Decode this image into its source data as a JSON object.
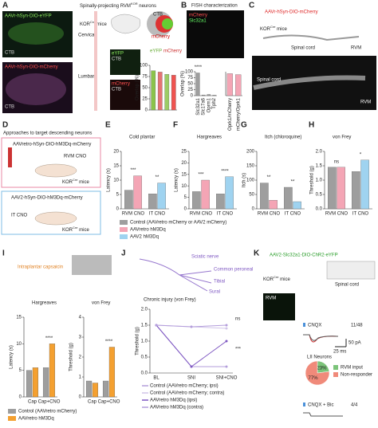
{
  "A": {
    "letter": "A",
    "title": [
      "Spinally-projecting RVM",
      "KOR",
      " neurons"
    ],
    "labels": [
      "AAVr-hSyn-DIO-eYFP",
      "AAVr-hSyn-DIO-mCherry",
      "CTB",
      "CTB",
      "KOR",
      "Cre",
      " mice",
      "Cervical",
      "Lumbar",
      "eYFP",
      "CTB",
      "mCherry",
      "CTB",
      "CTB",
      "eYFP",
      "mCherry"
    ]
  },
  "B": {
    "letter": "B",
    "title": "FISH characterization",
    "labels": [
      "mCherry",
      "Slc32a1"
    ]
  },
  "C": {
    "letter": "C",
    "labels": [
      "AAVr-hSyn-DIO-mCherry",
      "KOR",
      "Cre",
      " mice",
      "Spinal cord",
      "RVM",
      "Spinal cord",
      "RVM"
    ]
  },
  "D": {
    "letter": "D",
    "title": "Approaches to target descending neurons",
    "labels": [
      "AAVretro-hSyn-DIO-hM3Dq-mCherry",
      "RVM CNO",
      "KOR",
      "Cre",
      " mice",
      "AAV2-hSyn-DIO-hM3Dq-mCherry",
      "IT CNO",
      "KOR",
      "Cre",
      " mice"
    ]
  },
  "E": {
    "letter": "E"
  },
  "F": {
    "letter": "F"
  },
  "G": {
    "letter": "G"
  },
  "H": {
    "letter": "H"
  },
  "legend2": [
    {
      "name": "Control (AAVretro mCherry or AAV2 mCherry)",
      "color": "#9e9e9e"
    },
    {
      "name": "AAVretro hM3Dq",
      "color": "#f4a5b5"
    },
    {
      "name": "AAV2 hM3Dq",
      "color": "#9fd3f0"
    }
  ],
  "I": {
    "letter": "I",
    "labels": [
      "Intraplantar capsaicin"
    ],
    "legend": [
      {
        "name": "Control (AAVretro mCherry)",
        "color": "#9e9e9e"
      },
      {
        "name": "AAVretro hM3Dq",
        "color": "#f4a030"
      }
    ]
  },
  "J": {
    "letter": "J",
    "labels": [
      "Sciatic nerve",
      "Common peroneal",
      "Tibial",
      "Sural",
      "Chronic injury (von Frey)"
    ]
  },
  "K": {
    "letter": "K",
    "labels": [
      "AAV2-Slc32a1-DIO-ChR2-eYFP",
      "KOR",
      "Cre",
      " mice",
      "Spinal cord",
      "RVM",
      "CNQX",
      "11/48",
      "50 pA",
      "25 ms",
      "LII Neurons",
      "CNQX + Bic",
      "4/4"
    ],
    "pie": {
      "values": [
        23,
        77
      ],
      "value_labels": [
        "23%",
        "77%"
      ],
      "colors": [
        "#7cc47a",
        "#f08a7a"
      ],
      "names": [
        "RVM input",
        "Non-responder"
      ]
    }
  },
  "charts": {
    "A": {
      "type": "bar",
      "ylabel": "Overlap (%)",
      "categories": [
        null,
        null,
        null,
        null
      ],
      "ylim": [
        0,
        100
      ],
      "yticks": [
        0,
        25,
        50,
        75,
        100
      ],
      "series": [
        {
          "color": "#8bc34a",
          "values": [
            88,
            null,
            null,
            null
          ]
        },
        {
          "color": "#e57373",
          "values": [
            null,
            85,
            null,
            null
          ]
        },
        {
          "color": "#9ccc65",
          "values": [
            null,
            null,
            80,
            null
          ]
        },
        {
          "color": "#ef5350",
          "values": [
            null,
            null,
            null,
            78
          ]
        }
      ]
    },
    "B": {
      "type": "bar",
      "ylabel": "Overlap (%)",
      "categories": [
        "Slc32a1",
        "Slc17a6",
        "Oprm1",
        "Tph2"
      ],
      "ylim": [
        0,
        100
      ],
      "yticks": [
        0,
        25,
        50,
        75,
        100
      ],
      "series": [
        {
          "color": "#9e9e9e",
          "values": [
            95,
            3,
            5,
            2
          ]
        }
      ],
      "annotations": [
        "****"
      ]
    },
    "B2": {
      "type": "bar",
      "categories": [
        "Oprk1/mCherry",
        "mCherry/Oprk1"
      ],
      "ylim": [
        0,
        100
      ],
      "yticks": [],
      "series": [
        {
          "color": "#f4a5b5",
          "values": [
            92,
            88
          ]
        }
      ]
    },
    "E": {
      "type": "bar",
      "title": "Cold plantar",
      "ylabel": "Latency (s)",
      "categories": [
        "RVM CNO",
        "IT CNO"
      ],
      "ylim": [
        0,
        20
      ],
      "yticks": [
        0,
        5,
        10,
        15,
        20
      ],
      "series": [
        {
          "color": "#9e9e9e",
          "values": [
            6.5,
            5.2
          ]
        },
        {
          "color": "#f4a5b5",
          "values": [
            11.5,
            null
          ]
        },
        {
          "color": "#9fd3f0",
          "values": [
            null,
            9
          ]
        }
      ],
      "annotations": [
        "***",
        "**"
      ]
    },
    "F": {
      "type": "bar",
      "title": "Hargreaves",
      "ylabel": "Latency (s)",
      "categories": [
        "RVM CNO",
        "IT CNO"
      ],
      "ylim": [
        0,
        25
      ],
      "yticks": [
        0,
        5,
        10,
        15,
        20,
        25
      ],
      "series": [
        {
          "color": "#9e9e9e",
          "values": [
            7.5,
            6.5
          ]
        },
        {
          "color": "#f4a5b5",
          "values": [
            12.5,
            null
          ]
        },
        {
          "color": "#9fd3f0",
          "values": [
            null,
            14
          ]
        }
      ],
      "annotations": [
        "***",
        "****"
      ]
    },
    "G": {
      "type": "bar",
      "title": "Itch (chloroquine)",
      "ylabel": "Itch (s)",
      "categories": [
        "RVM CNO",
        "IT CNO"
      ],
      "ylim": [
        0,
        200
      ],
      "yticks": [
        0,
        50,
        100,
        150,
        200
      ],
      "series": [
        {
          "color": "#9e9e9e",
          "values": [
            90,
            75
          ]
        },
        {
          "color": "#f4a5b5",
          "values": [
            30,
            null
          ]
        },
        {
          "color": "#9fd3f0",
          "values": [
            null,
            25
          ]
        }
      ],
      "annotations": [
        "**",
        "**"
      ]
    },
    "H": {
      "type": "bar",
      "title": "von Frey",
      "ylabel": "Threshold (g)",
      "categories": [
        "RVM CNO",
        "IT CNO"
      ],
      "ylim": [
        0,
        2
      ],
      "yticks": [
        {
          "value": 0,
          "label": "0.0"
        },
        0.5,
        {
          "value": 1,
          "label": "1.0"
        },
        1.5,
        {
          "value": 2,
          "label": "2.0"
        }
      ],
      "series": [
        {
          "color": "#9e9e9e",
          "values": [
            1.45,
            1.3
          ]
        },
        {
          "color": "#f4a5b5",
          "values": [
            1.45,
            null
          ]
        },
        {
          "color": "#9fd3f0",
          "values": [
            null,
            1.7
          ]
        }
      ],
      "annotations": [
        "ns",
        "*"
      ]
    },
    "I1": {
      "type": "bar",
      "title": "Hargreaves",
      "ylabel": "Latency (s)",
      "categories": [
        "Cap",
        "Cap+CNO"
      ],
      "ylim": [
        0,
        15
      ],
      "yticks": [
        0,
        5,
        10,
        15
      ],
      "series": [
        {
          "color": "#9e9e9e",
          "values": [
            5,
            5.5
          ]
        },
        {
          "color": "#f4a030",
          "values": [
            5.5,
            10
          ]
        }
      ],
      "annotations": [
        null,
        "****"
      ]
    },
    "I2": {
      "type": "bar",
      "title": "von Frey",
      "ylabel": "Threshold (g)",
      "categories": [
        "Cap",
        "Cap+CNO"
      ],
      "ylim": [
        0,
        4
      ],
      "yticks": [
        0,
        1,
        2,
        3,
        4
      ],
      "series": [
        {
          "color": "#9e9e9e",
          "values": [
            0.8,
            0.8
          ]
        },
        {
          "color": "#f4a030",
          "values": [
            0.7,
            2.5
          ]
        }
      ],
      "annotations": [
        null,
        "****"
      ]
    },
    "J": {
      "type": "line",
      "ylabel": "Threshold (g)",
      "categories": [
        "BL",
        "SNI",
        "SNI+CNO"
      ],
      "ylim": [
        0,
        2
      ],
      "yticks": [
        {
          "value": 0,
          "label": "0.0"
        },
        0.5,
        {
          "value": 1,
          "label": "1.0"
        },
        1.5,
        {
          "value": 2,
          "label": "2.0"
        }
      ],
      "series": [
        {
          "name": "Control (AAVretro mCherry; ipsi)",
          "color": "#b39ddb",
          "values": [
            1.5,
            0.2,
            0.2
          ]
        },
        {
          "name": "Control (AAVretro mCherry; contra)",
          "color": "#d1c4e9",
          "values": [
            1.5,
            1.45,
            1.4
          ]
        },
        {
          "name": "AAVretro hM3Dq (ipsi)",
          "color": "#7e57c2",
          "values": [
            1.5,
            0.2,
            1.0
          ]
        },
        {
          "name": "AAVretro hM3Dq (contra)",
          "color": "#b39ddb",
          "values": [
            1.5,
            1.45,
            1.5
          ]
        }
      ],
      "annotations": [
        "ns",
        "***"
      ]
    }
  }
}
